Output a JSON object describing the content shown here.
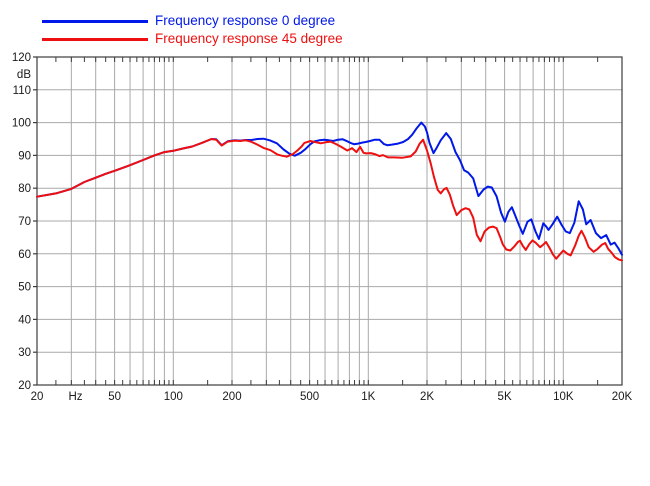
{
  "legend": {
    "items": [
      {
        "label": "Frequency response 0 degree",
        "color": "#0018e8"
      },
      {
        "label": "Frequency response 45 degree",
        "color": "#ee1010"
      }
    ]
  },
  "chart_data": {
    "type": "line",
    "x_scale": "log",
    "x_range": [
      20,
      20000
    ],
    "y_range": [
      20,
      120
    ],
    "y_unit_label": "dB",
    "grid_on": true,
    "legend_position": "top-left",
    "colors": {
      "grid": "#a9a9a9",
      "border": "#3c3c3c",
      "text": "#1a1a1a"
    },
    "y_ticks": [
      20,
      30,
      40,
      50,
      60,
      70,
      80,
      90,
      100,
      110,
      120
    ],
    "gridline_freqs": [
      30,
      40,
      50,
      60,
      70,
      80,
      90,
      100,
      200,
      300,
      400,
      500,
      600,
      700,
      800,
      900,
      1000,
      2000,
      3000,
      4000,
      5000,
      6000,
      7000,
      8000,
      9000,
      10000
    ],
    "minor_tick_freqs": [
      25,
      35,
      45,
      55,
      65,
      75,
      85,
      95,
      150,
      250,
      350,
      450,
      550,
      650,
      750,
      850,
      950,
      1500,
      2500,
      3500,
      4500,
      5500,
      6500,
      7500,
      8500,
      9500,
      15000
    ],
    "x_tick_labels": [
      {
        "text": "20",
        "f": 20
      },
      {
        "text": "Hz",
        "f": 31.5
      },
      {
        "text": "50",
        "f": 50
      },
      {
        "text": "100",
        "f": 100
      },
      {
        "text": "200",
        "f": 200
      },
      {
        "text": "500",
        "f": 500
      },
      {
        "text": "1K",
        "f": 1000
      },
      {
        "text": "2K",
        "f": 2000
      },
      {
        "text": "5K",
        "f": 5000
      },
      {
        "text": "10K",
        "f": 10000
      },
      {
        "text": "20K",
        "f": 20000
      }
    ],
    "series": [
      {
        "name": "Frequency response 0 degree",
        "color": "#0018e8",
        "points": [
          [
            20,
            77.4
          ],
          [
            25,
            78.4
          ],
          [
            30,
            79.8
          ],
          [
            35,
            81.9
          ],
          [
            40,
            83.2
          ],
          [
            45,
            84.4
          ],
          [
            50,
            85.3
          ],
          [
            60,
            87.0
          ],
          [
            70,
            88.6
          ],
          [
            80,
            90.0
          ],
          [
            90,
            91.0
          ],
          [
            100,
            91.4
          ],
          [
            112,
            92.1
          ],
          [
            125,
            92.7
          ],
          [
            140,
            93.8
          ],
          [
            157,
            95.0
          ],
          [
            166,
            94.9
          ],
          [
            177,
            93.1
          ],
          [
            190,
            94.3
          ],
          [
            207,
            94.6
          ],
          [
            220,
            94.5
          ],
          [
            235,
            94.7
          ],
          [
            252,
            94.7
          ],
          [
            270,
            95.0
          ],
          [
            290,
            95.1
          ],
          [
            312,
            94.6
          ],
          [
            340,
            93.7
          ],
          [
            368,
            91.8
          ],
          [
            395,
            90.5
          ],
          [
            420,
            89.9
          ],
          [
            450,
            90.8
          ],
          [
            475,
            91.9
          ],
          [
            505,
            93.4
          ],
          [
            530,
            94.3
          ],
          [
            560,
            94.6
          ],
          [
            595,
            94.8
          ],
          [
            625,
            94.6
          ],
          [
            660,
            94.4
          ],
          [
            700,
            94.8
          ],
          [
            740,
            94.9
          ],
          [
            780,
            94.3
          ],
          [
            810,
            93.8
          ],
          [
            845,
            93.4
          ],
          [
            885,
            93.6
          ],
          [
            930,
            93.9
          ],
          [
            970,
            94.1
          ],
          [
            1020,
            94.4
          ],
          [
            1080,
            94.8
          ],
          [
            1140,
            94.8
          ],
          [
            1200,
            93.5
          ],
          [
            1250,
            93.1
          ],
          [
            1320,
            93.3
          ],
          [
            1420,
            93.6
          ],
          [
            1510,
            94.1
          ],
          [
            1600,
            95.0
          ],
          [
            1680,
            96.3
          ],
          [
            1770,
            98.3
          ],
          [
            1870,
            100.0
          ],
          [
            1950,
            98.8
          ],
          [
            2000,
            97.0
          ],
          [
            2060,
            93.8
          ],
          [
            2160,
            90.7
          ],
          [
            2250,
            92.5
          ],
          [
            2350,
            94.6
          ],
          [
            2510,
            96.8
          ],
          [
            2650,
            95.0
          ],
          [
            2800,
            91.0
          ],
          [
            2950,
            88.6
          ],
          [
            3100,
            85.5
          ],
          [
            3250,
            84.8
          ],
          [
            3450,
            83.0
          ],
          [
            3670,
            77.6
          ],
          [
            3900,
            79.6
          ],
          [
            4100,
            80.5
          ],
          [
            4300,
            80.2
          ],
          [
            4550,
            77.5
          ],
          [
            4800,
            72.5
          ],
          [
            5020,
            69.8
          ],
          [
            5230,
            72.8
          ],
          [
            5450,
            74.2
          ],
          [
            5700,
            71.3
          ],
          [
            5950,
            68.5
          ],
          [
            6200,
            66.1
          ],
          [
            6550,
            69.8
          ],
          [
            6850,
            70.5
          ],
          [
            7200,
            66.8
          ],
          [
            7500,
            64.5
          ],
          [
            7900,
            69.3
          ],
          [
            8200,
            68.2
          ],
          [
            8400,
            67.3
          ],
          [
            8800,
            69.0
          ],
          [
            9300,
            71.3
          ],
          [
            9800,
            68.8
          ],
          [
            10300,
            66.8
          ],
          [
            10800,
            66.3
          ],
          [
            11400,
            69.5
          ],
          [
            12000,
            76.0
          ],
          [
            12600,
            73.5
          ],
          [
            13100,
            69.0
          ],
          [
            13800,
            70.3
          ],
          [
            14700,
            66.3
          ],
          [
            15600,
            64.8
          ],
          [
            16600,
            65.7
          ],
          [
            17500,
            62.8
          ],
          [
            18300,
            63.4
          ],
          [
            19100,
            61.8
          ],
          [
            20000,
            59.7
          ]
        ]
      },
      {
        "name": "Frequency response 45 degree",
        "color": "#ee1010",
        "points": [
          [
            20,
            77.4
          ],
          [
            25,
            78.4
          ],
          [
            30,
            79.8
          ],
          [
            35,
            81.9
          ],
          [
            40,
            83.2
          ],
          [
            45,
            84.4
          ],
          [
            50,
            85.3
          ],
          [
            60,
            87.0
          ],
          [
            70,
            88.6
          ],
          [
            80,
            90.0
          ],
          [
            90,
            91.0
          ],
          [
            100,
            91.4
          ],
          [
            112,
            92.1
          ],
          [
            125,
            92.7
          ],
          [
            140,
            93.8
          ],
          [
            157,
            95.0
          ],
          [
            166,
            94.8
          ],
          [
            177,
            93.0
          ],
          [
            190,
            94.2
          ],
          [
            207,
            94.5
          ],
          [
            220,
            94.4
          ],
          [
            235,
            94.6
          ],
          [
            250,
            94.2
          ],
          [
            270,
            93.3
          ],
          [
            290,
            92.3
          ],
          [
            315,
            91.6
          ],
          [
            341,
            90.3
          ],
          [
            360,
            89.9
          ],
          [
            382,
            89.6
          ],
          [
            410,
            90.4
          ],
          [
            433,
            91.5
          ],
          [
            455,
            92.7
          ],
          [
            470,
            93.8
          ],
          [
            505,
            94.4
          ],
          [
            540,
            94.0
          ],
          [
            570,
            93.7
          ],
          [
            605,
            94.0
          ],
          [
            640,
            94.2
          ],
          [
            680,
            93.5
          ],
          [
            721,
            92.7
          ],
          [
            780,
            91.5
          ],
          [
            826,
            92.2
          ],
          [
            870,
            91.0
          ],
          [
            908,
            92.6
          ],
          [
            945,
            90.8
          ],
          [
            975,
            90.6
          ],
          [
            1030,
            90.7
          ],
          [
            1090,
            90.3
          ],
          [
            1140,
            89.8
          ],
          [
            1190,
            90.1
          ],
          [
            1260,
            89.4
          ],
          [
            1350,
            89.4
          ],
          [
            1500,
            89.3
          ],
          [
            1650,
            89.7
          ],
          [
            1750,
            91.2
          ],
          [
            1830,
            93.5
          ],
          [
            1910,
            94.8
          ],
          [
            2000,
            91.5
          ],
          [
            2090,
            87.6
          ],
          [
            2170,
            83.5
          ],
          [
            2270,
            79.5
          ],
          [
            2350,
            78.4
          ],
          [
            2440,
            79.6
          ],
          [
            2520,
            80.1
          ],
          [
            2620,
            78.0
          ],
          [
            2720,
            74.8
          ],
          [
            2840,
            71.8
          ],
          [
            3000,
            73.3
          ],
          [
            3150,
            73.9
          ],
          [
            3300,
            73.5
          ],
          [
            3450,
            71.0
          ],
          [
            3600,
            65.8
          ],
          [
            3760,
            63.8
          ],
          [
            3950,
            66.8
          ],
          [
            4150,
            68.0
          ],
          [
            4350,
            68.3
          ],
          [
            4550,
            67.8
          ],
          [
            4750,
            65.0
          ],
          [
            4900,
            62.8
          ],
          [
            5100,
            61.3
          ],
          [
            5350,
            61.0
          ],
          [
            5600,
            62.2
          ],
          [
            5850,
            63.6
          ],
          [
            6000,
            64.0
          ],
          [
            6200,
            62.4
          ],
          [
            6420,
            61.2
          ],
          [
            6700,
            63.0
          ],
          [
            6950,
            64.1
          ],
          [
            7200,
            63.4
          ],
          [
            7600,
            62.0
          ],
          [
            7900,
            62.8
          ],
          [
            8150,
            63.6
          ],
          [
            8500,
            61.8
          ],
          [
            8850,
            59.8
          ],
          [
            9200,
            58.5
          ],
          [
            9600,
            59.8
          ],
          [
            10000,
            61.0
          ],
          [
            10500,
            60.0
          ],
          [
            10900,
            59.5
          ],
          [
            11500,
            62.5
          ],
          [
            12000,
            65.5
          ],
          [
            12400,
            67.0
          ],
          [
            12900,
            65.0
          ],
          [
            13500,
            62.0
          ],
          [
            14300,
            60.6
          ],
          [
            15000,
            61.5
          ],
          [
            15800,
            62.8
          ],
          [
            16400,
            63.3
          ],
          [
            17000,
            61.5
          ],
          [
            17700,
            60.3
          ],
          [
            18400,
            59.0
          ],
          [
            19200,
            58.3
          ],
          [
            20000,
            58.0
          ]
        ]
      }
    ]
  }
}
